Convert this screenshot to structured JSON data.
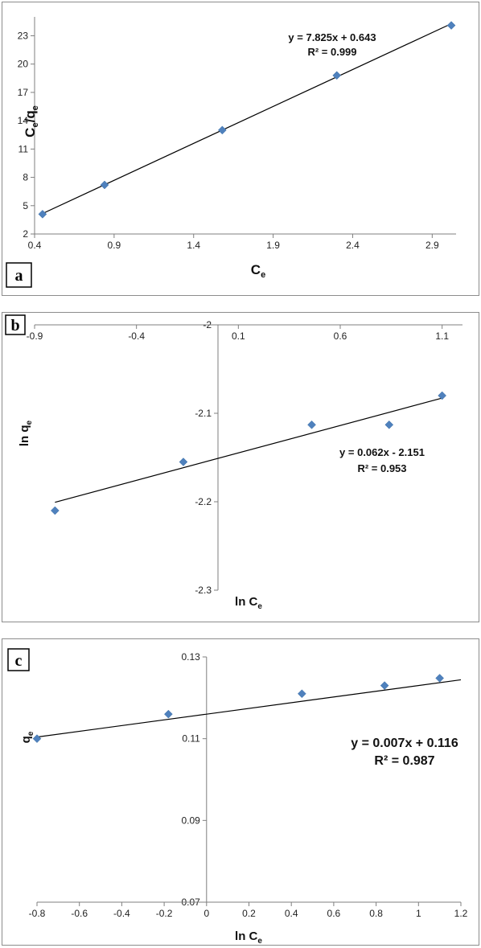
{
  "colors": {
    "marker": "#4f81bd",
    "line": "#000000",
    "axis": "#7f7f7f",
    "border": "#8c8c8c"
  },
  "chart_data": [
    {
      "type": "scatter",
      "panel_label": "a",
      "ylabel_main": "C",
      "ylabel_sub1": "e",
      "ylabel_slash": "/q",
      "ylabel_sub2": "e",
      "xlabel_main": "C",
      "xlabel_sub": "e",
      "xlim": [
        0.4,
        3.05
      ],
      "ylim": [
        2,
        25
      ],
      "xticks": [
        0.4,
        0.9,
        1.4,
        1.9,
        2.4,
        2.9
      ],
      "yticks": [
        2,
        5,
        8,
        11,
        14,
        17,
        20,
        23
      ],
      "points": [
        [
          0.45,
          4.1
        ],
        [
          0.84,
          7.2
        ],
        [
          1.58,
          13.0
        ],
        [
          2.3,
          18.8
        ],
        [
          3.02,
          24.1
        ]
      ],
      "fit": {
        "slope": 7.825,
        "intercept": 0.643,
        "x_range": [
          0.44,
          3.02
        ]
      },
      "equation": "y = 7.825x + 0.643",
      "r2": "R² = 0.999",
      "grid": false
    },
    {
      "type": "scatter",
      "panel_label": "b",
      "ylabel_main": "ln q",
      "ylabel_sub": "e",
      "xlabel_main": "ln C",
      "xlabel_sub": "e",
      "xlim": [
        -0.9,
        1.2
      ],
      "ylim": [
        -2.3,
        -2.0
      ],
      "xticks": [
        -0.9,
        -0.4,
        0.1,
        0.6,
        1.1
      ],
      "yticks": [
        -2.0,
        -2.1,
        -2.2,
        -2.3
      ],
      "points": [
        [
          -0.8,
          -2.21
        ],
        [
          -0.17,
          -2.155
        ],
        [
          0.46,
          -2.113
        ],
        [
          0.84,
          -2.113
        ],
        [
          1.1,
          -2.08
        ]
      ],
      "fit": {
        "slope": 0.062,
        "intercept": -2.151,
        "x_range": [
          -0.8,
          1.1
        ]
      },
      "equation": "y = 0.062x - 2.151",
      "r2": "R² = 0.953",
      "grid": false
    },
    {
      "type": "scatter",
      "panel_label": "c",
      "ylabel_main": "q",
      "ylabel_sub": "e",
      "xlabel_main": "ln C",
      "xlabel_sub": "e",
      "xlim": [
        -0.8,
        1.2
      ],
      "ylim": [
        0.07,
        0.13
      ],
      "xticks": [
        -0.8,
        -0.6,
        -0.4,
        -0.2,
        0,
        0.2,
        0.4,
        0.6,
        0.8,
        1,
        1.2
      ],
      "yticks": [
        0.07,
        0.09,
        0.11,
        0.13
      ],
      "points": [
        [
          -0.8,
          0.11
        ],
        [
          -0.18,
          0.116
        ],
        [
          0.45,
          0.121
        ],
        [
          0.84,
          0.123
        ],
        [
          1.1,
          0.1248
        ]
      ],
      "fit": {
        "slope": 0.007,
        "intercept": 0.116,
        "x_range": [
          -0.8,
          1.2
        ]
      },
      "equation": "y = 0.007x + 0.116",
      "r2": "R² = 0.987",
      "grid": false
    }
  ]
}
